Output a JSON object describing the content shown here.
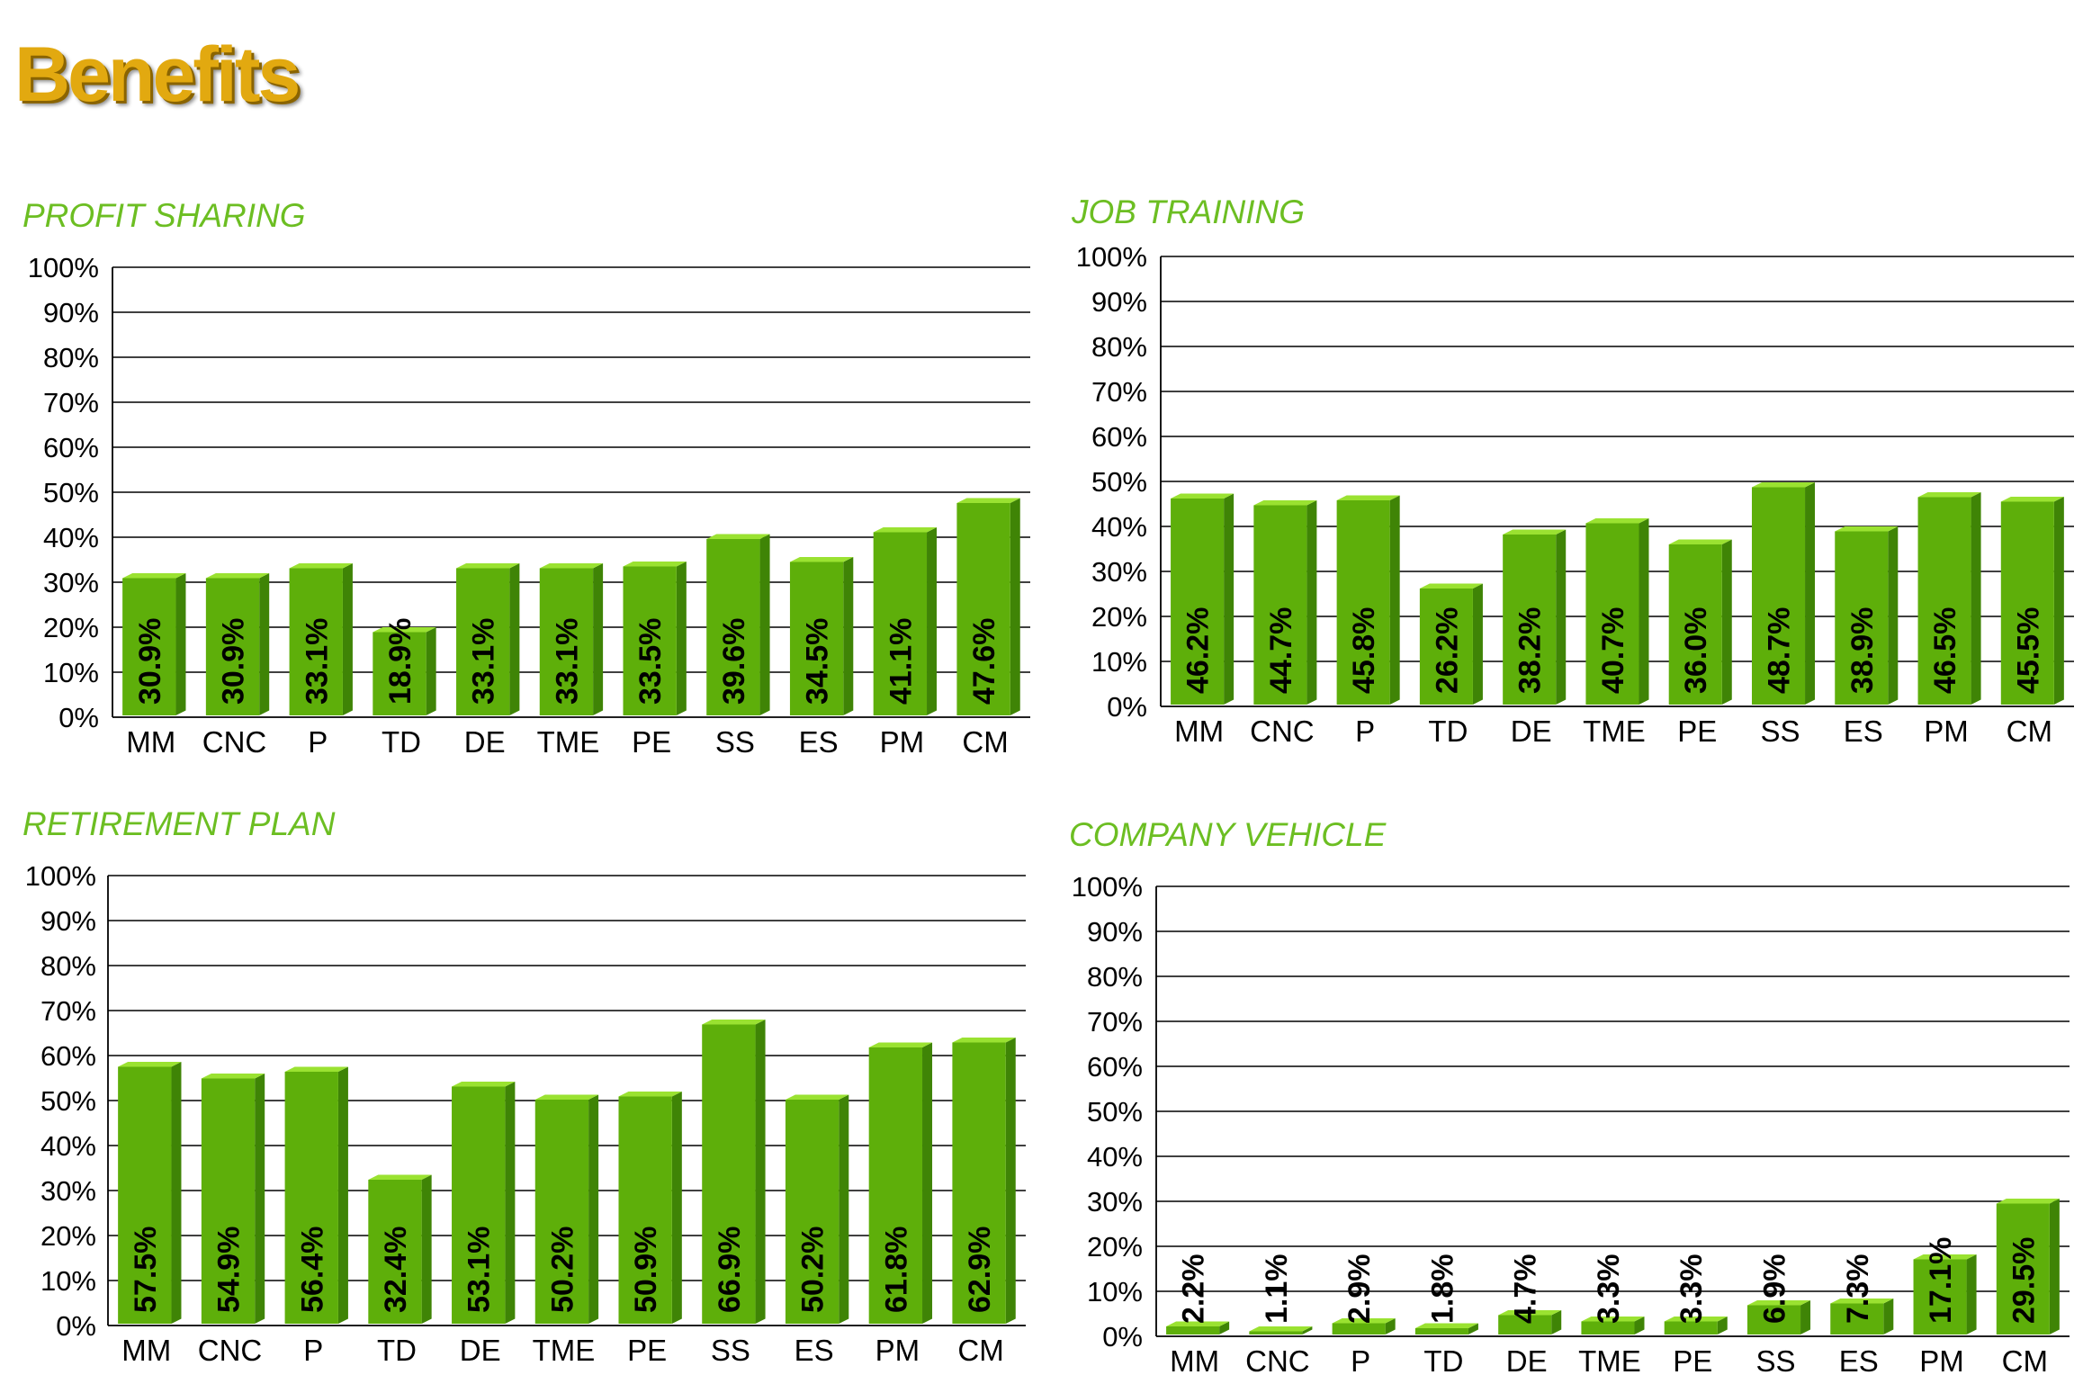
{
  "page": {
    "title": "Benefits"
  },
  "colors": {
    "bar_front": "#5eaf0a",
    "bar_side": "#3f8406",
    "bar_top": "#9ae231",
    "title": "#e2a910",
    "chart_title": "#6cbe22"
  },
  "chart_data": [
    {
      "id": "profit",
      "type": "bar",
      "title": "PROFIT SHARING",
      "categories": [
        "MM",
        "CNC",
        "P",
        "TD",
        "DE",
        "TME",
        "PE",
        "SS",
        "ES",
        "PM",
        "CM"
      ],
      "values": [
        30.9,
        30.9,
        33.1,
        18.9,
        33.1,
        33.1,
        33.5,
        39.6,
        34.5,
        41.1,
        47.6
      ],
      "labels": [
        "30.9%",
        "30.9%",
        "33.1%",
        "18.9%",
        "33.1%",
        "33.1%",
        "33.5%",
        "39.6%",
        "34.5%",
        "41.1%",
        "47.6%"
      ],
      "yticks": [
        "0%",
        "10%",
        "20%",
        "30%",
        "40%",
        "50%",
        "60%",
        "70%",
        "80%",
        "90%",
        "100%"
      ],
      "ylim": [
        0,
        100
      ],
      "grid": true
    },
    {
      "id": "job",
      "type": "bar",
      "title": "JOB TRAINING",
      "categories": [
        "MM",
        "CNC",
        "P",
        "TD",
        "DE",
        "TME",
        "PE",
        "SS",
        "ES",
        "PM",
        "CM"
      ],
      "values": [
        46.2,
        44.7,
        45.8,
        26.2,
        38.2,
        40.7,
        36.0,
        48.7,
        38.9,
        46.5,
        45.5
      ],
      "labels": [
        "46.2%",
        "44.7%",
        "45.8%",
        "26.2%",
        "38.2%",
        "40.7%",
        "36.0%",
        "48.7%",
        "38.9%",
        "46.5%",
        "45.5%"
      ],
      "yticks": [
        "0%",
        "10%",
        "20%",
        "30%",
        "40%",
        "50%",
        "60%",
        "70%",
        "80%",
        "90%",
        "100%"
      ],
      "ylim": [
        0,
        100
      ],
      "grid": true
    },
    {
      "id": "retirement",
      "type": "bar",
      "title": "RETIREMENT PLAN",
      "categories": [
        "MM",
        "CNC",
        "P",
        "TD",
        "DE",
        "TME",
        "PE",
        "SS",
        "ES",
        "PM",
        "CM"
      ],
      "values": [
        57.5,
        54.9,
        56.4,
        32.4,
        53.1,
        50.2,
        50.9,
        66.9,
        50.2,
        61.8,
        62.9
      ],
      "labels": [
        "57.5%",
        "54.9%",
        "56.4%",
        "32.4%",
        "53.1%",
        "50.2%",
        "50.9%",
        "66.9%",
        "50.2%",
        "61.8%",
        "62.9%"
      ],
      "yticks": [
        "0%",
        "10%",
        "20%",
        "30%",
        "40%",
        "50%",
        "60%",
        "70%",
        "80%",
        "90%",
        "100%"
      ],
      "ylim": [
        0,
        100
      ],
      "grid": true
    },
    {
      "id": "vehicle",
      "type": "bar",
      "title": "COMPANY VEHICLE",
      "categories": [
        "MM",
        "CNC",
        "P",
        "TD",
        "DE",
        "TME",
        "PE",
        "SS",
        "ES",
        "PM",
        "CM"
      ],
      "values": [
        2.2,
        1.1,
        2.9,
        1.8,
        4.7,
        3.3,
        3.3,
        6.9,
        7.3,
        17.1,
        29.5
      ],
      "labels": [
        "2.2%",
        "1.1%",
        "2.9%",
        "1.8%",
        "4.7%",
        "3.3%",
        "3.3%",
        "6.9%",
        "7.3%",
        "17.1%",
        "29.5%"
      ],
      "yticks": [
        "0%",
        "10%",
        "20%",
        "30%",
        "40%",
        "50%",
        "60%",
        "70%",
        "80%",
        "90%",
        "100%"
      ],
      "ylim": [
        0,
        100
      ],
      "grid": true
    }
  ]
}
